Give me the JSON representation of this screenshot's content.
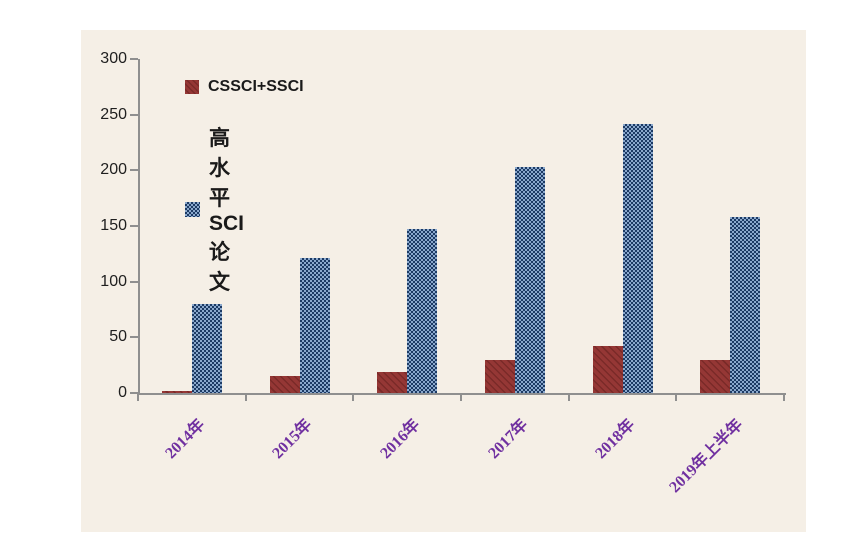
{
  "panel": {
    "background": "#f5efe6"
  },
  "legend": {
    "items": [
      {
        "label": "CSSCI+SSCI",
        "swatch": "red-diagonal-hatch"
      },
      {
        "label": "高水平SCI论文",
        "swatch": "blue-checkerboard"
      }
    ]
  },
  "chart_data": {
    "type": "bar",
    "title": "",
    "xlabel": "",
    "ylabel": "",
    "categories": [
      "2014年",
      "2015年",
      "2016年",
      "2017年",
      "2018年",
      "2019年上半年"
    ],
    "series": [
      {
        "name": "CSSCI+SSCI",
        "values": [
          2,
          15,
          19,
          30,
          42,
          30
        ],
        "pattern": "diagonal-hatch",
        "color_base": "#953735",
        "color_stripe": "#7a2a28"
      },
      {
        "name": "高水平SCI论文",
        "values": [
          80,
          121,
          147,
          203,
          242,
          158
        ],
        "pattern": "checkerboard",
        "color_base": "#1c3a64",
        "color_light": "#8aa8cd"
      }
    ],
    "ylim": [
      0,
      300
    ],
    "yticks": [
      0,
      50,
      100,
      150,
      200,
      250,
      300
    ],
    "grid": false,
    "legend_position": "top-left-inside",
    "x_tick_label_color": "#7030a0",
    "y_tick_label_color": "#1f1f1f",
    "axis_color": "#8f8f8f",
    "plot_background": "#f5efe6"
  }
}
